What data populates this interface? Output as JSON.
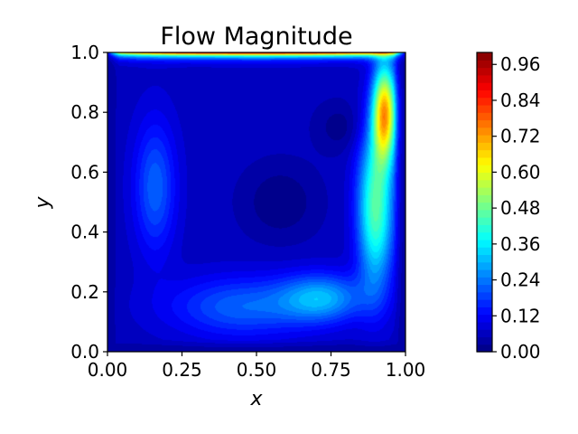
{
  "chart_data": {
    "type": "heatmap",
    "title": "Flow Magnitude",
    "xlabel": "x",
    "ylabel": "y",
    "xlim": [
      0,
      1
    ],
    "ylim": [
      0,
      1
    ],
    "xticks": [
      "0.00",
      "0.25",
      "0.50",
      "0.75",
      "1.00"
    ],
    "yticks": [
      "0.0",
      "0.2",
      "0.4",
      "0.6",
      "0.8",
      "1.0"
    ],
    "colorbar": {
      "ticks": [
        "0.00",
        "0.12",
        "0.24",
        "0.36",
        "0.48",
        "0.60",
        "0.72",
        "0.84",
        "0.96"
      ],
      "range": [
        0,
        1
      ],
      "colormap": "jet"
    },
    "grid": false
  }
}
